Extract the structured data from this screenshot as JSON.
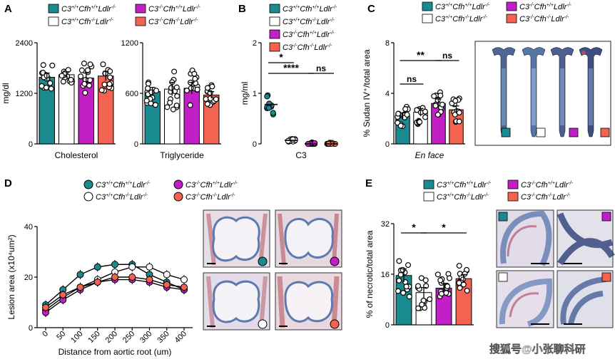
{
  "colors": {
    "teal": "#1a8a91",
    "white": "#ffffff",
    "magenta": "#c21fc6",
    "salmon": "#f26451",
    "black": "#000000",
    "tissue_blue": "#5d79b0",
    "tissue_red": "#c65a5a"
  },
  "panels": {
    "A": {
      "label": "A"
    },
    "B": {
      "label": "B"
    },
    "C": {
      "label": "C"
    },
    "D": {
      "label": "D"
    },
    "E": {
      "label": "E"
    }
  },
  "legend": {
    "g1": {
      "base": "C3",
      "sup1": "+/+",
      "mid": "Cfh",
      "sup2": "+/+",
      "tail": "Ldlr",
      "sup3": "-/-"
    },
    "g2": {
      "base": "C3",
      "sup1": "+/+",
      "mid": "Cfh",
      "sup2": "-/-",
      "tail": "Ldlr",
      "sup3": "-/-"
    },
    "g3": {
      "base": "C3",
      "sup1": "-/-",
      "mid": "Cfh",
      "sup2": "+/+",
      "tail": "Ldlr",
      "sup3": "-/-"
    },
    "g4": {
      "base": "C3",
      "sup1": "-/-",
      "mid": "Cfh",
      "sup2": "-/-",
      "tail": "Ldlr",
      "sup3": "-/-"
    }
  },
  "chart_data": [
    {
      "panel": "A",
      "type": "bar",
      "ylabel": "mg/dl",
      "xlabel": "Cholesterol",
      "ylim": [
        0,
        2400
      ],
      "yticks": [
        "0",
        "1200",
        "2400"
      ],
      "categories": [
        "C3+/+Cfh+/+Ldlr-/-",
        "C3+/+Cfh-/-Ldlr-/-",
        "C3-/-Cfh+/+Ldlr-/-",
        "C3-/-Cfh-/-Ldlr-/-"
      ],
      "values": [
        1580,
        1640,
        1560,
        1610
      ],
      "errors": [
        100,
        70,
        120,
        110
      ]
    },
    {
      "panel": "A",
      "type": "bar",
      "xlabel": "Triglyceride",
      "ylim": [
        0,
        1200
      ],
      "yticks": [
        "0",
        "600",
        "1200"
      ],
      "categories": [
        "C3+/+Cfh+/+Ldlr-/-",
        "C3+/+Cfh-/-Ldlr-/-",
        "C3-/-Cfh+/+Ldlr-/-",
        "C3-/-Cfh-/-Ldlr-/-"
      ],
      "values": [
        620,
        650,
        660,
        580
      ],
      "errors": [
        50,
        80,
        70,
        40
      ]
    },
    {
      "panel": "B",
      "type": "scatter",
      "ylabel": "mg/ml",
      "xlabel": "C3",
      "ylim": [
        0,
        2
      ],
      "yticks": [
        "0",
        "1",
        "2"
      ],
      "categories": [
        "C3+/+Cfh+/+Ldlr-/-",
        "C3+/+Cfh-/-Ldlr-/-",
        "C3-/-Cfh+/+Ldlr-/-",
        "C3-/-Cfh-/-Ldlr-/-"
      ],
      "values": [
        0.78,
        0.07,
        0.0,
        0.0
      ],
      "annotations": [
        "*",
        "****",
        "ns"
      ]
    },
    {
      "panel": "C",
      "type": "bar",
      "ylabel": "% Sudan IV⁺/total area",
      "xlabel": "En face",
      "ylim": [
        0,
        8
      ],
      "yticks": [
        "0",
        "4",
        "8"
      ],
      "categories": [
        "C3+/+Cfh+/+Ldlr-/-",
        "C3+/+Cfh-/-Ldlr-/-",
        "C3-/-Cfh+/+Ldlr-/-",
        "C3-/-Cfh-/-Ldlr-/-"
      ],
      "values": [
        2.2,
        2.5,
        3.2,
        2.7
      ],
      "errors": [
        0.25,
        0.3,
        0.35,
        0.3
      ],
      "annotations": [
        "**",
        "ns",
        "ns"
      ]
    },
    {
      "panel": "D",
      "type": "line",
      "ylabel": "Lesion area (x10⁴um²)",
      "xlabel": "Distance from aortic root (um)",
      "ylim": [
        0,
        40
      ],
      "yticks": [
        "0",
        "20",
        "40"
      ],
      "x": [
        0,
        50,
        100,
        150,
        200,
        250,
        300,
        350,
        400
      ],
      "series": [
        {
          "name": "C3+/+Cfh+/+Ldlr-/-",
          "values": [
            9,
            15,
            21,
            24,
            25,
            25,
            21,
            18,
            15
          ]
        },
        {
          "name": "C3+/+Cfh-/-Ldlr-/-",
          "values": [
            7,
            12,
            16,
            19,
            22,
            24,
            24,
            21,
            19
          ]
        },
        {
          "name": "C3-/-Cfh+/+Ldlr-/-",
          "values": [
            6,
            11,
            15,
            18,
            19,
            19,
            18,
            16,
            15
          ]
        },
        {
          "name": "C3-/-Cfh-/-Ldlr-/-",
          "values": [
            8,
            13,
            16,
            18,
            20,
            20,
            19,
            17,
            16
          ]
        }
      ]
    },
    {
      "panel": "E",
      "type": "bar",
      "ylabel": "% of necrotic/total area",
      "ylim": [
        0,
        32
      ],
      "yticks": [
        "0",
        "16",
        "32"
      ],
      "categories": [
        "C3+/+Cfh+/+Ldlr-/-",
        "C3+/+Cfh-/-Ldlr-/-",
        "C3-/-Cfh+/+Ldlr-/-",
        "C3-/-Cfh-/-Ldlr-/-"
      ],
      "values": [
        15.6,
        10.2,
        11.6,
        14.6
      ],
      "errors": [
        2.1,
        1.6,
        1.5,
        1.3
      ],
      "annotations": [
        "*",
        "*"
      ]
    }
  ],
  "footer": {
    "watermark": "搜狐号@小张聊科研"
  }
}
